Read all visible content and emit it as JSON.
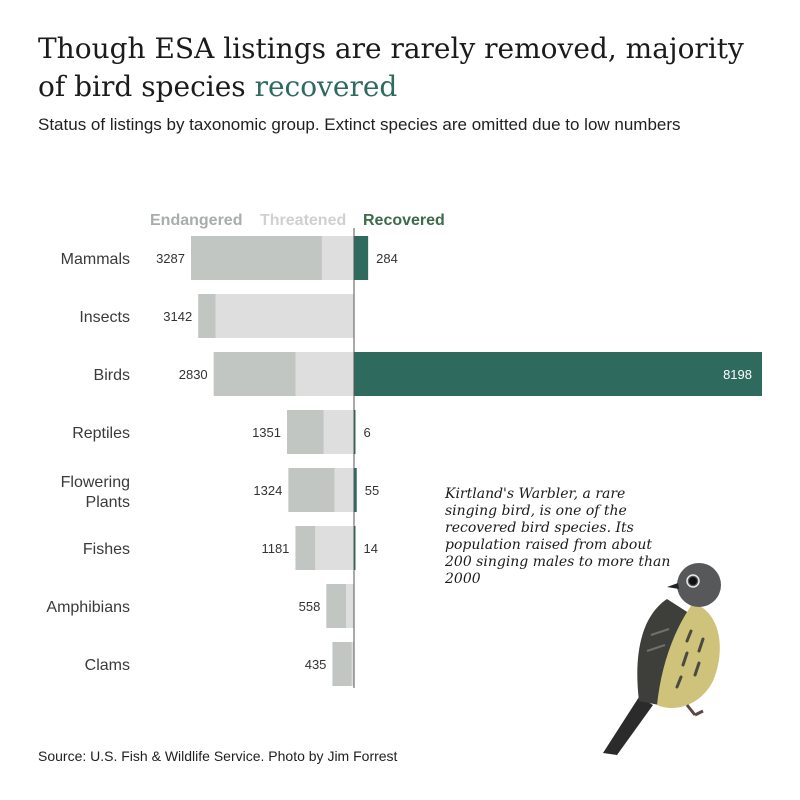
{
  "title": {
    "line1": "Though ESA listings are rarely removed, majority",
    "line2_prefix": "of bird species ",
    "line2_accent": "recovered"
  },
  "subtitle": "Status of listings by taxonomic group. Extinct species are omitted due to low numbers",
  "caption": "Kirtland's Warbler, a rare singing bird, is one of the recovered bird species. Its population raised from about 200 singing males to more than 2000",
  "source": "Source: U.S. Fish & Wildlife Service. Photo by Jim Forrest",
  "colors": {
    "endangered": "#c2c6c2",
    "threatened": "#dedede",
    "recovered": "#2e6a5e",
    "endangered_label": "#a9aeaa",
    "threatened_label": "#cfd1cf",
    "recovered_label": "#3b6b48"
  },
  "chart_data": {
    "type": "bar",
    "legend": [
      "Endangered",
      "Threatened",
      "Recovered"
    ],
    "categories": [
      "Mammals",
      "Insects",
      "Birds",
      "Reptiles",
      "Flowering Plants",
      "Fishes",
      "Amphibians",
      "Clams"
    ],
    "listed_total": [
      3287,
      3142,
      2830,
      1351,
      1324,
      1181,
      558,
      435
    ],
    "endangered": [
      2640,
      350,
      1650,
      740,
      930,
      400,
      400,
      390
    ],
    "threatened": [
      647,
      2792,
      1180,
      611,
      394,
      781,
      158,
      45
    ],
    "recovered": [
      284,
      0,
      8198,
      6,
      55,
      14,
      0,
      0
    ],
    "recovered_labels": [
      "284",
      "",
      "8198",
      "6",
      "55",
      "14",
      "",
      ""
    ]
  }
}
